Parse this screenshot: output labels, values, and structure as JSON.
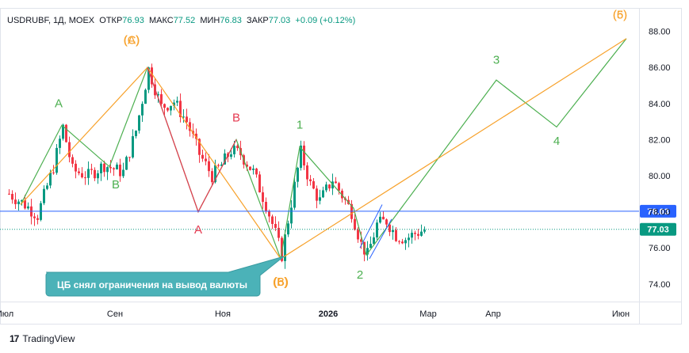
{
  "header": {
    "ticker": "USDRUBF, 1Д, MOEX",
    "open_label": "ОТКР",
    "open": "76.93",
    "high_label": "МАКС",
    "high": "77.52",
    "low_label": "МИН",
    "low": "76.83",
    "close_label": "ЗАКР",
    "close": "77.03",
    "change": "+0.09 (+0.12%)"
  },
  "footer": {
    "brand": "TradingView",
    "logo_icon": "tradingview-logo-icon"
  },
  "colors": {
    "up": "#089981",
    "down": "#f23645",
    "wave_green": "#4caf50",
    "wave_orange": "#f7a12a",
    "corr_red": "#e53950",
    "hline": "#2962ff",
    "price": "#089981",
    "callout": "#4bb2b8"
  },
  "chart_data": {
    "type": "candlestick",
    "title": "USDRUBF, 1Д, MOEX",
    "y_axis": {
      "ylim": [
        72.5,
        89.0
      ],
      "ticks": [
        "74.00",
        "76.00",
        "78.00",
        "80.00",
        "82.00",
        "84.00",
        "86.00",
        "88.00"
      ],
      "position": "right"
    },
    "x_axis": {
      "ticks": [
        "Июл",
        "Сен",
        "Ноя",
        "2026",
        "Мар",
        "Апр",
        "Июн"
      ]
    },
    "grid": false,
    "price_lines": [
      {
        "value": 78.03,
        "label": "78.03",
        "color": "#2962ff",
        "style": "solid"
      },
      {
        "value": 77.03,
        "label": "77.03",
        "color": "#089981",
        "style": "dotted"
      }
    ],
    "candles_approx_path": [
      [
        0,
        79.0
      ],
      [
        5,
        78.4
      ],
      [
        9,
        77.8
      ],
      [
        14,
        80.5
      ],
      [
        17,
        82.7
      ],
      [
        20,
        80.3
      ],
      [
        25,
        80.0
      ],
      [
        30,
        80.6
      ],
      [
        34,
        80.3
      ],
      [
        36,
        80.2
      ],
      [
        40,
        82.5
      ],
      [
        44,
        85.9
      ],
      [
        48,
        83.8
      ],
      [
        52,
        84.1
      ],
      [
        56,
        83.0
      ],
      [
        60,
        81.2
      ],
      [
        64,
        80.0
      ],
      [
        67,
        80.6
      ],
      [
        70,
        81.4
      ],
      [
        73,
        81.2
      ],
      [
        77,
        80.2
      ],
      [
        81,
        78.4
      ],
      [
        84,
        76.8
      ],
      [
        86,
        75.6
      ],
      [
        89,
        78.5
      ],
      [
        92,
        81.3
      ],
      [
        95,
        79.5
      ],
      [
        98,
        78.6
      ],
      [
        102,
        79.8
      ],
      [
        105,
        78.9
      ],
      [
        108,
        78.0
      ],
      [
        111,
        76.2
      ],
      [
        113,
        75.6
      ],
      [
        116,
        77.3
      ],
      [
        119,
        77.5
      ],
      [
        122,
        76.7
      ],
      [
        125,
        76.5
      ],
      [
        128,
        76.8
      ],
      [
        131,
        77.0
      ]
    ],
    "wave_lines": [
      {
        "name": "green",
        "points": [
          [
            4,
            78.4
          ],
          [
            17,
            82.8
          ],
          [
            32,
            80.5
          ],
          [
            44,
            86.0
          ],
          [
            60,
            78.0
          ],
          [
            72,
            82.0
          ],
          [
            86,
            75.4
          ],
          [
            92,
            81.6
          ],
          [
            109,
            78.2
          ],
          [
            113,
            75.6
          ],
          [
            154,
            85.3
          ],
          [
            173,
            82.7
          ],
          [
            195,
            87.6
          ]
        ]
      },
      {
        "name": "orange",
        "points": [
          [
            4,
            78.4
          ],
          [
            44,
            86.0
          ],
          [
            86,
            75.4
          ],
          [
            195,
            87.6
          ]
        ]
      },
      {
        "name": "red",
        "points": [
          [
            44,
            86.0
          ],
          [
            60,
            78.0
          ],
          [
            72,
            82.0
          ]
        ]
      }
    ],
    "channel": [
      [
        [
          111,
          76.0
        ],
        [
          118,
          78.4
        ]
      ],
      [
        [
          114,
          75.4
        ],
        [
          121,
          77.6
        ]
      ]
    ],
    "annotations": [
      {
        "text": "A",
        "color": "green",
        "at": [
          16,
          83.8
        ]
      },
      {
        "text": "B",
        "color": "green",
        "at": [
          34,
          79.3
        ]
      },
      {
        "text": "(A)",
        "color": "orange",
        "at": [
          39,
          87.3
        ]
      },
      {
        "text": "(C)",
        "color": "orange",
        "at": [
          39,
          87.3
        ]
      },
      {
        "text": "A",
        "color": "red",
        "at": [
          60,
          76.8
        ]
      },
      {
        "text": "B",
        "color": "red",
        "at": [
          72,
          83.0
        ]
      },
      {
        "text": "1",
        "color": "green",
        "at": [
          92,
          82.6
        ]
      },
      {
        "text": "(B)",
        "color": "orange",
        "at": [
          86,
          73.9
        ]
      },
      {
        "text": "(6)",
        "color": "orange",
        "at": [
          86,
          73.9
        ]
      },
      {
        "text": "2",
        "color": "green",
        "at": [
          111,
          74.3
        ]
      },
      {
        "text": "3",
        "color": "green",
        "at": [
          154,
          86.2
        ]
      },
      {
        "text": "4",
        "color": "green",
        "at": [
          173,
          81.7
        ]
      },
      {
        "text": "(5)",
        "color": "orange",
        "at": [
          193,
          88.7
        ]
      },
      {
        "text": "(6)",
        "color": "orange",
        "at": [
          193,
          88.7
        ]
      }
    ],
    "callout": {
      "text": "ЦБ снял ограничения на вывод валюты",
      "color": "#4bb2b8"
    }
  }
}
